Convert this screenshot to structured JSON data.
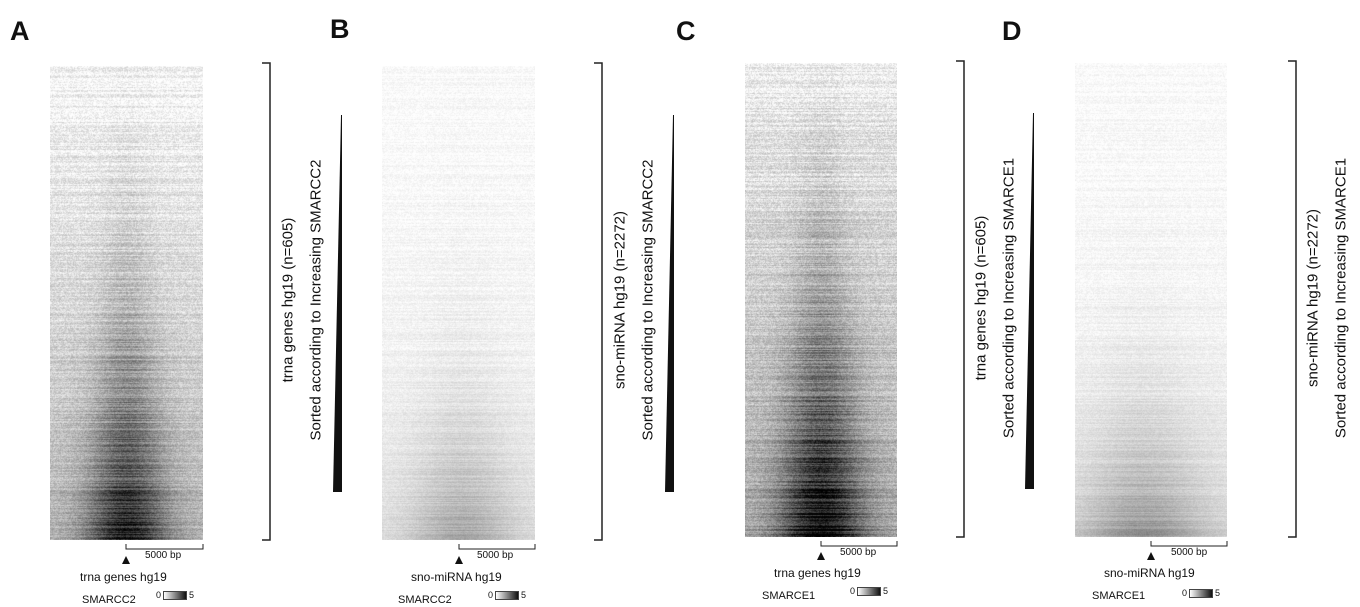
{
  "panels": [
    {
      "letter": "A",
      "region_label": "trna genes hg19",
      "sample": "SMARCC2",
      "scale_bar": "5000 bp",
      "legend_min": "0",
      "legend_max": "5",
      "axis_line1": "trna genes hg19 (n=605)",
      "axis_line2": "Sorted according to Increasing SMARCC2"
    },
    {
      "letter": "B",
      "region_label": "sno-miRNA hg19",
      "sample": "SMARCC2",
      "scale_bar": "5000 bp",
      "legend_min": "0",
      "legend_max": "5",
      "axis_line1": "sno-miRNA hg19 (n=2272)",
      "axis_line2": "Sorted according to Increasing SMARCC2"
    },
    {
      "letter": "C",
      "region_label": "trna genes hg19",
      "sample": "SMARCE1",
      "scale_bar": "5000 bp",
      "legend_min": "0",
      "legend_max": "5",
      "axis_line1": "trna genes hg19 (n=605)",
      "axis_line2": "Sorted according to Increasing SMARCE1"
    },
    {
      "letter": "D",
      "region_label": "sno-miRNA hg19",
      "sample": "SMARCE1",
      "scale_bar": "5000 bp",
      "legend_min": "0",
      "legend_max": "5",
      "axis_line1": "sno-miRNA hg19 (n=2272)",
      "axis_line2": "Sorted according to Increasing SMARCE1"
    }
  ],
  "colors": {
    "ink": "#111111",
    "background": "#ffffff",
    "heat_high": "#111111",
    "heat_low": "#ffffff"
  }
}
